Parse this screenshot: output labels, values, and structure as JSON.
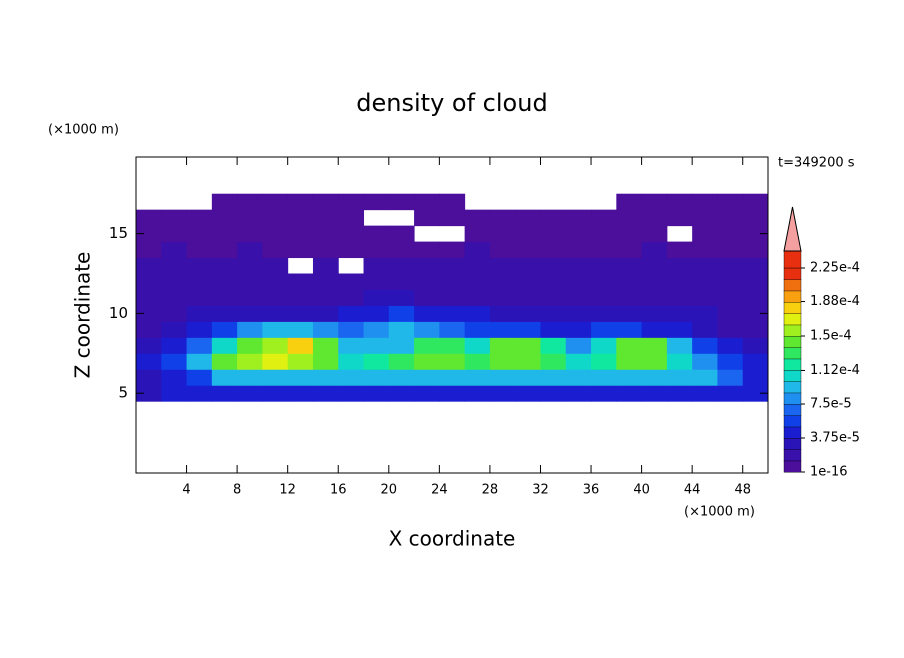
{
  "chart_data": {
    "type": "contour",
    "title": "density of cloud",
    "x_label": "X coordinate",
    "y_label": "Z coordinate",
    "x_unit": "(×1000 m)",
    "y_unit": "(×1000 m)",
    "time_label": "t=349200 s",
    "xlim": [
      0,
      50
    ],
    "ylim": [
      0,
      19.8
    ],
    "xticks": [
      4,
      8,
      12,
      16,
      20,
      24,
      28,
      32,
      36,
      40,
      44,
      48
    ],
    "yticks": [
      5,
      10,
      15
    ],
    "x": [
      1,
      3,
      5,
      7,
      9,
      11,
      13,
      15,
      17,
      19,
      21,
      23,
      25,
      27,
      29,
      31,
      33,
      35,
      37,
      39,
      41,
      43,
      45,
      47,
      49
    ],
    "z": [
      5,
      6,
      7,
      8,
      9,
      10,
      11,
      12,
      13,
      14,
      15,
      16,
      17
    ],
    "values": [
      [
        3e-05,
        4e-05,
        4e-05,
        4e-05,
        4e-05,
        4e-05,
        4e-05,
        4e-05,
        4e-05,
        4e-05,
        4e-05,
        4e-05,
        4e-05,
        4e-05,
        4e-05,
        4e-05,
        4e-05,
        4e-05,
        4e-05,
        4e-05,
        4e-05,
        4e-05,
        4e-05,
        4e-05,
        4e-05
      ],
      [
        3e-05,
        4e-05,
        6e-05,
        0.0001,
        0.0001,
        0.0001,
        0.0001,
        0.0001,
        0.0001,
        0.0001,
        0.0001,
        0.0001,
        0.0001,
        0.0001,
        0.0001,
        0.0001,
        0.0001,
        0.0001,
        9e-05,
        0.0001,
        0.0001,
        0.0001,
        0.0001,
        7e-05,
        5e-05
      ],
      [
        4e-05,
        6e-05,
        0.0001,
        0.00015,
        0.00016,
        0.00017,
        0.00016,
        0.00014,
        0.00011,
        0.00012,
        0.00013,
        0.00015,
        0.00014,
        0.00013,
        0.00015,
        0.00015,
        0.00013,
        0.00011,
        0.00012,
        0.00015,
        0.00014,
        0.00011,
        8e-05,
        6e-05,
        5e-05
      ],
      [
        3e-05,
        4e-05,
        7e-05,
        0.00011,
        0.00014,
        0.00016,
        0.00018,
        0.00015,
        0.0001,
        9e-05,
        0.0001,
        0.00013,
        0.00013,
        0.00011,
        0.00015,
        0.00015,
        0.00012,
        8e-05,
        0.00011,
        0.00015,
        0.00014,
        0.0001,
        6e-05,
        4e-05,
        3e-05
      ],
      [
        2.5e-05,
        3e-05,
        4e-05,
        6e-05,
        8e-05,
        9e-05,
        9e-05,
        8e-05,
        7e-05,
        8e-05,
        0.0001,
        8e-05,
        7e-05,
        6e-05,
        6e-05,
        6e-05,
        5e-05,
        5e-05,
        6e-05,
        6e-05,
        5e-05,
        4e-05,
        3e-05,
        2.5e-05,
        2.5e-05
      ],
      [
        2e-05,
        2e-05,
        3e-05,
        3e-05,
        3e-05,
        3e-05,
        3e-05,
        3e-05,
        4e-05,
        5e-05,
        6e-05,
        5e-05,
        5e-05,
        4e-05,
        3e-05,
        3e-05,
        3e-05,
        3e-05,
        3e-05,
        3e-05,
        3e-05,
        3e-05,
        3e-05,
        2e-05,
        2e-05
      ],
      [
        2e-05,
        2e-05,
        2e-05,
        2.5e-05,
        2.5e-05,
        2.5e-05,
        2.5e-05,
        2.5e-05,
        2.5e-05,
        3e-05,
        3e-05,
        2.5e-05,
        2.5e-05,
        2.5e-05,
        2.5e-05,
        2.5e-05,
        2.5e-05,
        2.5e-05,
        2.5e-05,
        2.5e-05,
        2.5e-05,
        2.5e-05,
        2.5e-05,
        2e-05,
        2e-05
      ],
      [
        2e-05,
        2e-05,
        2e-05,
        2e-05,
        2e-05,
        2e-05,
        2e-05,
        2e-05,
        2e-05,
        2e-05,
        2e-05,
        2e-05,
        2e-05,
        2e-05,
        2e-05,
        2e-05,
        2e-05,
        2e-05,
        2e-05,
        2e-05,
        2e-05,
        2e-05,
        2e-05,
        2e-05,
        2e-05
      ],
      [
        1.5e-05,
        1.5e-05,
        1.5e-05,
        1.5e-05,
        1.5e-05,
        1.5e-05,
        null,
        1.5e-05,
        null,
        1.5e-05,
        1.5e-05,
        1.5e-05,
        1.5e-05,
        1.5e-05,
        1.5e-05,
        1.5e-05,
        1.5e-05,
        1.5e-05,
        1.5e-05,
        1.5e-05,
        1.5e-05,
        1.5e-05,
        1.5e-05,
        1.5e-05,
        1.5e-05
      ],
      [
        1e-05,
        1.5e-05,
        1e-05,
        1e-05,
        1.5e-05,
        1e-05,
        1e-05,
        1e-05,
        1e-05,
        1e-05,
        1e-05,
        1e-05,
        1e-05,
        1.5e-05,
        1e-05,
        1e-05,
        1e-05,
        1e-05,
        1e-05,
        1e-05,
        1.5e-05,
        1e-05,
        1e-05,
        1e-05,
        1e-05
      ],
      [
        5e-06,
        5e-06,
        5e-06,
        5e-06,
        5e-06,
        5e-06,
        5e-06,
        5e-06,
        5e-06,
        5e-06,
        5e-06,
        null,
        null,
        5e-06,
        5e-06,
        5e-06,
        5e-06,
        5e-06,
        5e-06,
        5e-06,
        5e-06,
        null,
        5e-06,
        5e-06,
        5e-06
      ],
      [
        5e-06,
        5e-06,
        5e-06,
        5e-06,
        5e-06,
        5e-06,
        5e-06,
        5e-06,
        5e-06,
        null,
        null,
        5e-06,
        5e-06,
        5e-06,
        5e-06,
        5e-06,
        5e-06,
        5e-06,
        5e-06,
        5e-06,
        5e-06,
        5e-06,
        5e-06,
        5e-06,
        5e-06
      ],
      [
        null,
        null,
        null,
        5e-06,
        5e-06,
        5e-06,
        5e-06,
        5e-06,
        5e-06,
        5e-06,
        5e-06,
        5e-06,
        5e-06,
        null,
        null,
        null,
        null,
        null,
        null,
        5e-06,
        5e-06,
        5e-06,
        5e-06,
        5e-06,
        5e-06
      ]
    ],
    "clim": [
      1e-16,
      0.000225
    ],
    "colorbar_ticks": [
      1e-16,
      {
        "value": 3.75e-05,
        "label": "3.75e-5"
      },
      {
        "value": 7.5e-05,
        "label": "7.5e-5"
      },
      {
        "value": 0.000112,
        "label": "1.12e-4"
      },
      {
        "value": 0.00015,
        "label": "1.5e-4"
      },
      {
        "value": 0.000188,
        "label": "1.88e-4"
      },
      {
        "value": 0.000225,
        "label": "2.25e-4"
      }
    ],
    "colormap": [
      "#4b0f9b",
      "#3a10aa",
      "#2a14b8",
      "#1a1ed0",
      "#1040e8",
      "#1a66f0",
      "#2090f0",
      "#20b8e8",
      "#10d8c8",
      "#10e8a0",
      "#30e860",
      "#60e830",
      "#a0f020",
      "#e0f010",
      "#f8d010",
      "#f8a010",
      "#f07010",
      "#e83010"
    ],
    "overflow_color": "#f4a0a0"
  }
}
